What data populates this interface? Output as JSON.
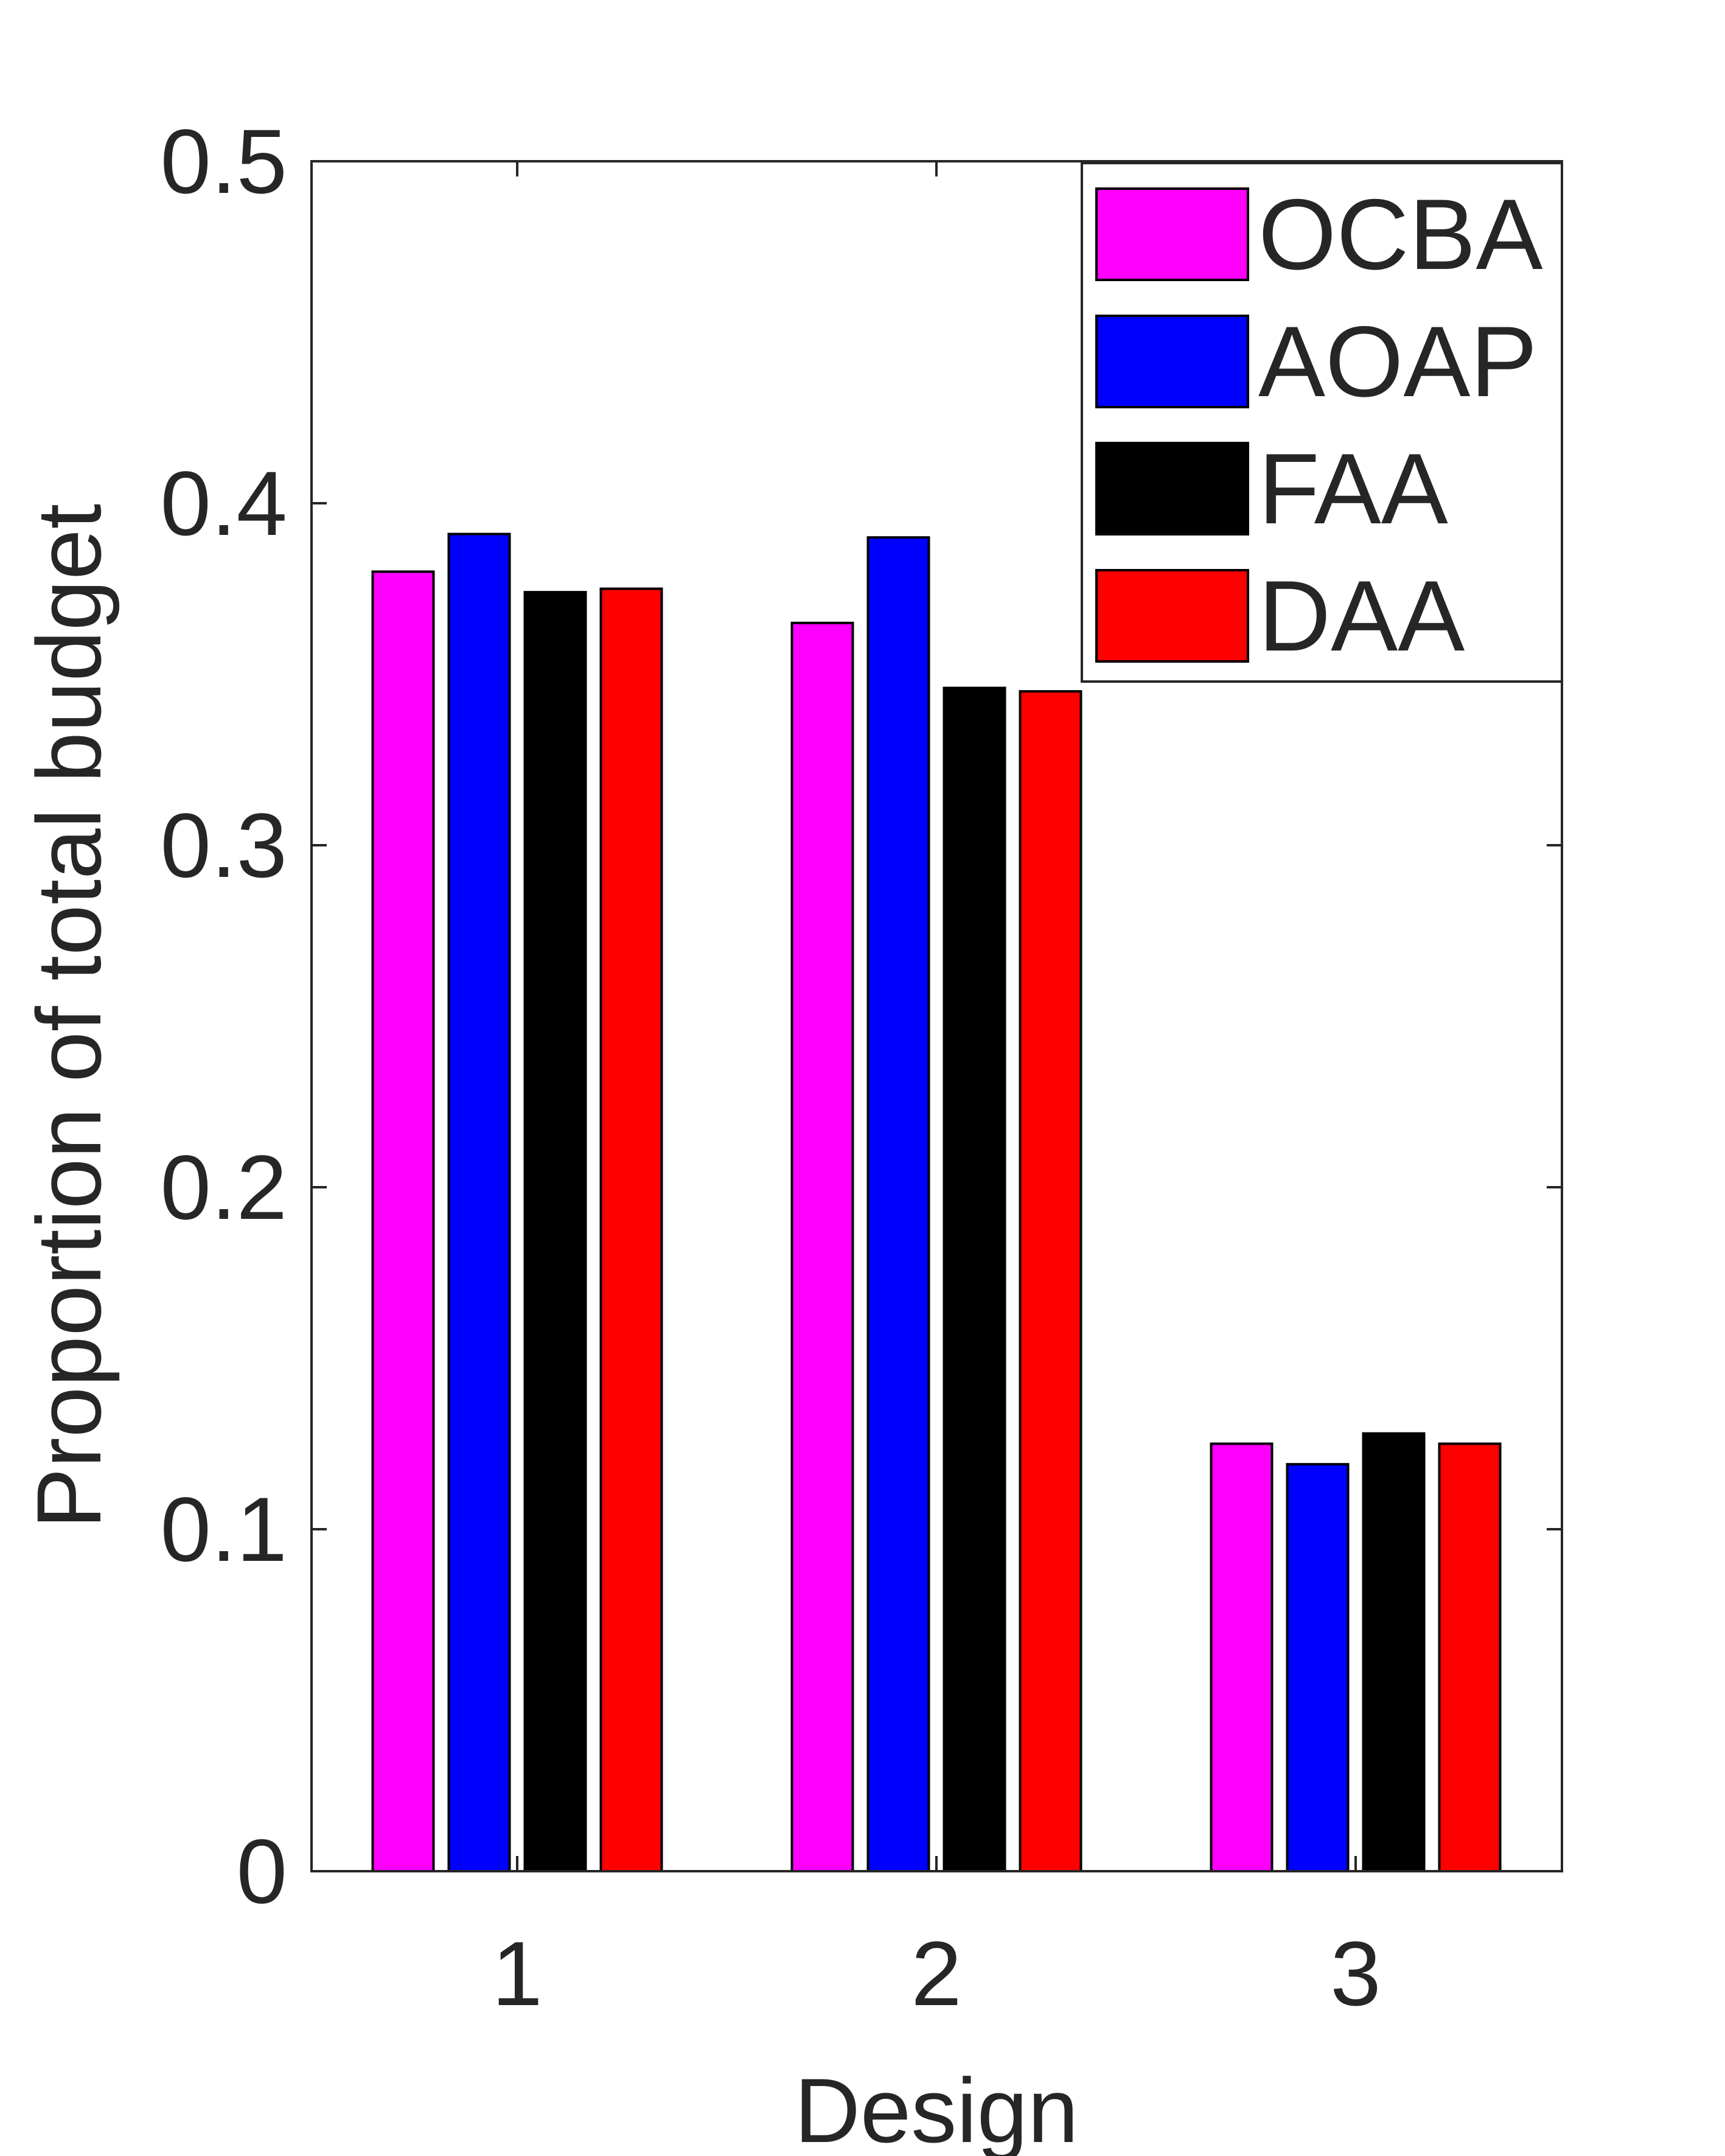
{
  "chart_data": {
    "type": "bar",
    "title": "",
    "xlabel": "Design",
    "ylabel": "Proportion of total budget",
    "categories": [
      "1",
      "2",
      "3"
    ],
    "series": [
      {
        "name": "OCBA",
        "color": "#FF00FF",
        "values": [
          0.38,
          0.365,
          0.125
        ]
      },
      {
        "name": "AOAP",
        "color": "#0000FF",
        "values": [
          0.391,
          0.39,
          0.119
        ]
      },
      {
        "name": "FAA",
        "color": "#000000",
        "values": [
          0.374,
          0.346,
          0.128
        ]
      },
      {
        "name": "DAA",
        "color": "#FF0000",
        "values": [
          0.375,
          0.345,
          0.125
        ]
      }
    ],
    "ylim": [
      0,
      0.5
    ],
    "yticks": [
      "0",
      "0.1",
      "0.2",
      "0.3",
      "0.4",
      "0.5"
    ],
    "ytick_values": [
      0,
      0.1,
      0.2,
      0.3,
      0.4,
      0.5
    ],
    "grid": false,
    "legend_position": "top-right"
  }
}
